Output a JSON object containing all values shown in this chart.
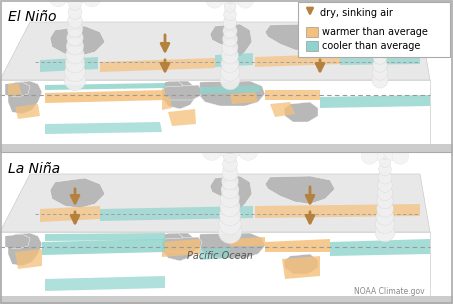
{
  "title_elnino": "El Niño",
  "title_lanina": "La Niña",
  "legend_arrow_label": "dry, sinking air",
  "legend_warm_label": "warmer than average",
  "legend_cool_label": "cooler than average",
  "credit": "NOAA Climate.gov",
  "pacific_ocean_label": "Pacific Ocean",
  "bg_color": "#ffffff",
  "border_color": "#aaaaaa",
  "warm_color": "#f5c07a",
  "cool_color": "#8fd4cc",
  "land_color": "#b8b8b8",
  "ocean_color": "#ffffff",
  "arrow_color": "#b5813e",
  "map_bg_color": "#e8e8e8",
  "dashed_line_color": "#999999",
  "title_fontsize": 10,
  "legend_fontsize": 7,
  "credit_fontsize": 5.5,
  "pacific_fontsize": 7
}
